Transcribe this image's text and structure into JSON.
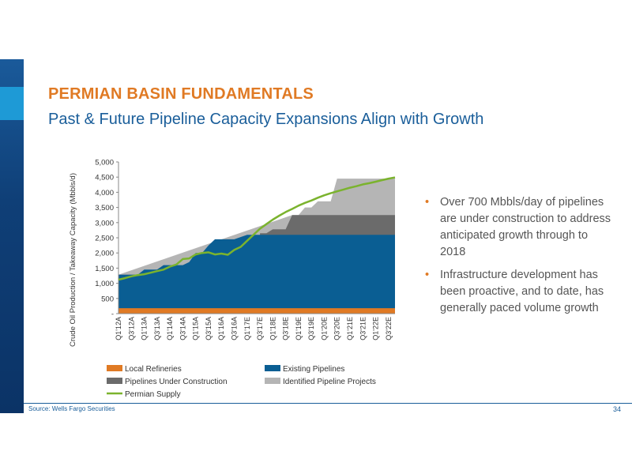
{
  "slide": {
    "title": "PERMIAN BASIN FUNDAMENTALS",
    "subtitle": "Past & Future Pipeline Capacity Expansions Align with Growth",
    "bullets": [
      "Over 700 Mbbls/day of pipelines are under construction to address anticipated growth through to 2018",
      "Infrastructure development has been proactive, and to date, has generally paced volume growth"
    ],
    "source": "Source: Wells Fargo Securities",
    "page_number": "34"
  },
  "colors": {
    "title": "#e07a24",
    "subtitle": "#1a5e9a",
    "local_refineries": "#e07a24",
    "existing_pipelines": "#0a5e93",
    "under_construction": "#6b6b6b",
    "identified_projects": "#b5b5b5",
    "permian_supply": "#7bb32e"
  },
  "chart_data": {
    "type": "area",
    "ylabel": "Crude Oil Production / Takeaway Capacity (Mbbls/d)",
    "xlabel": "",
    "ylim": [
      0,
      5000
    ],
    "yticks": [
      "-",
      "500",
      "1,000",
      "1,500",
      "2,000",
      "2,500",
      "3,000",
      "3,500",
      "4,000",
      "4,500",
      "5,000"
    ],
    "x_tick_labels": [
      "Q1'12A",
      "Q3'12A",
      "Q1'13A",
      "Q3'13A",
      "Q1'14A",
      "Q3'14A",
      "Q1'15A",
      "Q3'15A",
      "Q1'16A",
      "Q3'16A",
      "Q1'17E",
      "Q3'17E",
      "Q1'18E",
      "Q3'18E",
      "Q1'19E",
      "Q3'19E",
      "Q1'20E",
      "Q3'20E",
      "Q1'21E",
      "Q3'21E",
      "Q1'22E",
      "Q3'22E"
    ],
    "stack_edges": {
      "local_refineries": [
        [
          0,
          180
        ],
        [
          43,
          180
        ]
      ],
      "existing_pipelines": [
        [
          0,
          1280
        ],
        [
          3,
          1280
        ],
        [
          4,
          1450
        ],
        [
          6,
          1450
        ],
        [
          7,
          1600
        ],
        [
          10,
          1600
        ],
        [
          11,
          1700
        ],
        [
          12,
          2000
        ],
        [
          13,
          2000
        ],
        [
          14,
          2250
        ],
        [
          15,
          2450
        ],
        [
          18,
          2450
        ],
        [
          20,
          2600
        ],
        [
          43,
          2600
        ]
      ],
      "under_construction": [
        [
          0,
          1280
        ],
        [
          21,
          1280
        ],
        [
          22,
          1280
        ],
        [
          22,
          2600
        ],
        [
          22,
          2650
        ],
        [
          23,
          2650
        ],
        [
          24,
          2780
        ],
        [
          25,
          2780
        ],
        [
          26,
          2780
        ],
        [
          27,
          3250
        ],
        [
          43,
          3250
        ]
      ],
      "identified_projects": [
        [
          0,
          1280
        ],
        [
          27,
          3250
        ],
        [
          28,
          3250
        ],
        [
          29,
          3500
        ],
        [
          30,
          3500
        ],
        [
          31,
          3700
        ],
        [
          32,
          3700
        ],
        [
          33,
          3700
        ],
        [
          34,
          4450
        ],
        [
          43,
          4450
        ]
      ]
    },
    "series": [
      {
        "name": "Local Refineries",
        "role": "area-base",
        "value": 180
      },
      {
        "name": "Existing Pipelines",
        "role": "area-stack"
      },
      {
        "name": "Pipelines Under Construction",
        "role": "area-stack"
      },
      {
        "name": "Identified Pipeline Projects",
        "role": "area-stack"
      },
      {
        "name": "Permian Supply",
        "role": "line",
        "values": [
          1120,
          1170,
          1230,
          1270,
          1300,
          1350,
          1400,
          1450,
          1550,
          1620,
          1800,
          1820,
          1950,
          2000,
          2020,
          1950,
          1980,
          1940,
          2100,
          2200,
          2400,
          2600,
          2800,
          2950,
          3100,
          3230,
          3350,
          3450,
          3560,
          3650,
          3730,
          3820,
          3900,
          3970,
          4030,
          4090,
          4150,
          4200,
          4260,
          4300,
          4350,
          4400,
          4450,
          4490
        ]
      }
    ],
    "legend": {
      "placement": "bottom",
      "entries": [
        "Local Refineries",
        "Existing Pipelines",
        "Pipelines Under Construction",
        "Identified Pipeline Projects",
        "Permian Supply"
      ]
    },
    "grid": false
  }
}
